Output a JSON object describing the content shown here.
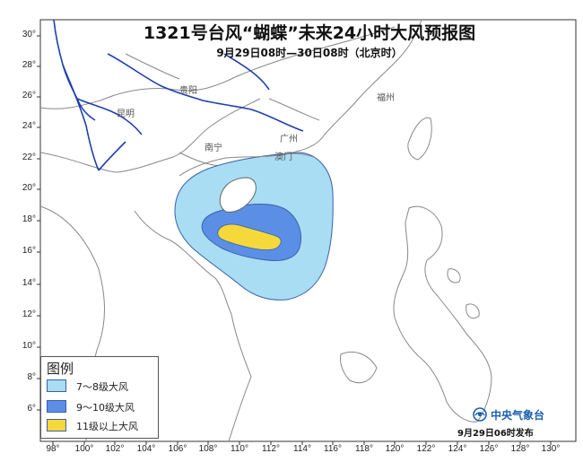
{
  "title": "1321号台风“蝴蝶”未来24小时大风预报图",
  "subtitle": "9月29日08时—30日08时（北京时）",
  "lat_labels": [
    "30°",
    "28°",
    "26°",
    "24°",
    "22°",
    "20°",
    "18°",
    "16°",
    "14°",
    "12°",
    "10°",
    "8°",
    "6°"
  ],
  "lon_labels": [
    "98°",
    "100°",
    "102°",
    "104°",
    "106°",
    "108°",
    "110°",
    "112°",
    "114°",
    "116°",
    "118°",
    "120°",
    "122°",
    "124°",
    "126°",
    "128°",
    "130°"
  ],
  "cities": [
    "贵阳",
    "昆明",
    "南宁",
    "广州",
    "福州",
    "澳门"
  ],
  "legend": {
    "title": "图例",
    "items": [
      {
        "label": "7～8级大风",
        "color": "#a8ddf3"
      },
      {
        "label": "9～10级大风",
        "color": "#5b8fe6"
      },
      {
        "label": "11级以上大风",
        "color": "#f5d93a"
      }
    ]
  },
  "logo": {
    "text": "中央气象台",
    "icon": "cma-logo-icon"
  },
  "release_time": "9月29日06时发布",
  "colors": {
    "land_border": "#888888",
    "river": "#1f3fb0",
    "wind_outline": "#3a5fa8"
  }
}
